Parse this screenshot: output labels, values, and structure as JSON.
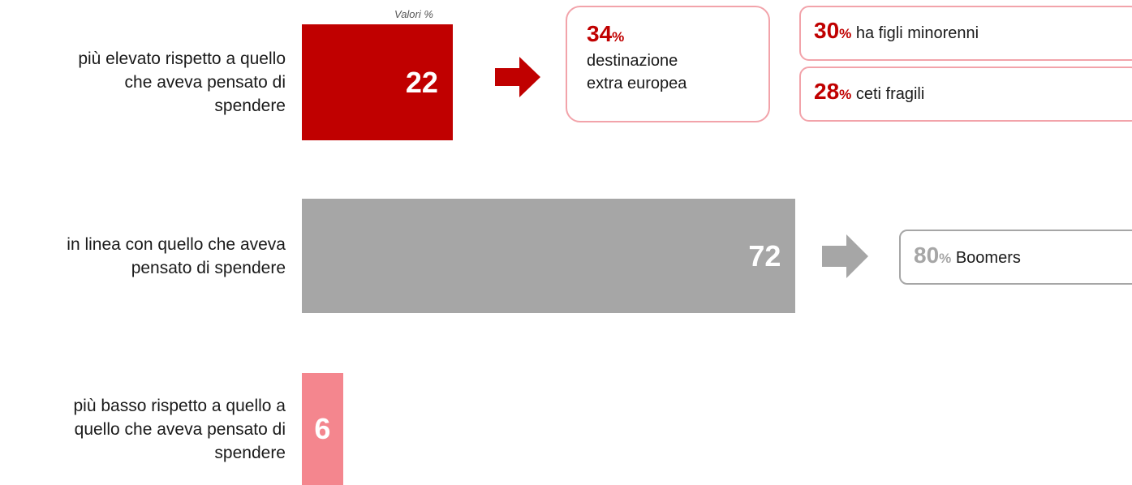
{
  "chart_data": {
    "type": "bar",
    "orientation": "horizontal",
    "subtitle": "Valori %",
    "categories": [
      [
        "più elevato rispetto a quello",
        "che aveva pensato di",
        "spendere"
      ],
      [
        "in linea con quello che aveva",
        "pensato di spendere"
      ],
      [
        "più basso rispetto a quello a",
        "quello che aveva pensato di",
        "spendere"
      ]
    ],
    "values": [
      22,
      72,
      6
    ],
    "colors": [
      "#c00000",
      "#a6a6a6",
      "#f4868e"
    ],
    "annotations": [
      {
        "category": 0,
        "value": 34,
        "unit": "%",
        "text": [
          "destinazione",
          "extra europea"
        ],
        "color": "#c00000",
        "border": "#f2a3aa"
      },
      {
        "category": 0,
        "value": 30,
        "unit": "%",
        "text": [
          "ha figli minorenni"
        ],
        "color": "#c00000",
        "border": "#f2a3aa"
      },
      {
        "category": 0,
        "value": 28,
        "unit": "%",
        "text": [
          "ceti fragili"
        ],
        "color": "#c00000",
        "border": "#f2a3aa"
      },
      {
        "category": 1,
        "value": 80,
        "unit": "%",
        "text": [
          "Boomers"
        ],
        "color": "#a6a6a6",
        "border": "#a6a6a6"
      }
    ]
  }
}
